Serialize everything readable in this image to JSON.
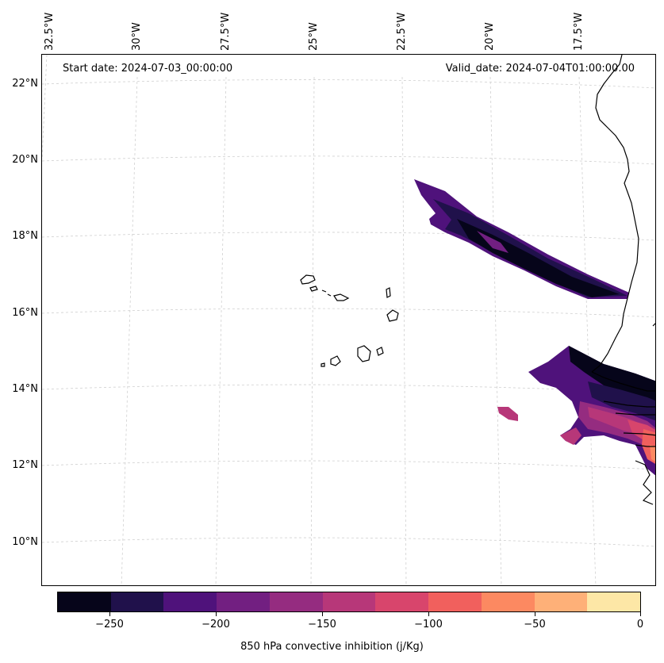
{
  "map": {
    "start_date": "Start date: 2024-07-03_00:00:00",
    "valid_date": "Valid_date: 2024-07-04T01:00:00.00",
    "lon_labels": [
      "32.5°W",
      "30°W",
      "27.5°W",
      "25°W",
      "22.5°W",
      "20°W",
      "17.5°W"
    ],
    "lat_labels": [
      "22°N",
      "20°N",
      "18°N",
      "16°N",
      "14°N",
      "12°N",
      "10°N"
    ],
    "gridlines": true,
    "variable": "850 hPa convective inhibition",
    "colorbar_label": "850 hPa convective inhibition (j/Kg)",
    "colorbar_ticks": [
      "−250",
      "−200",
      "−150",
      "−100",
      "−50",
      "0"
    ],
    "colorbar_range": [
      -275,
      0
    ],
    "colormap": [
      "#06051a",
      "#20114b",
      "#4f127b",
      "#721f81",
      "#952c80",
      "#b73779",
      "#d8456c",
      "#f1605d",
      "#fc8961",
      "#feb078",
      "#fde7a6"
    ],
    "coastline_color": "#000000"
  }
}
